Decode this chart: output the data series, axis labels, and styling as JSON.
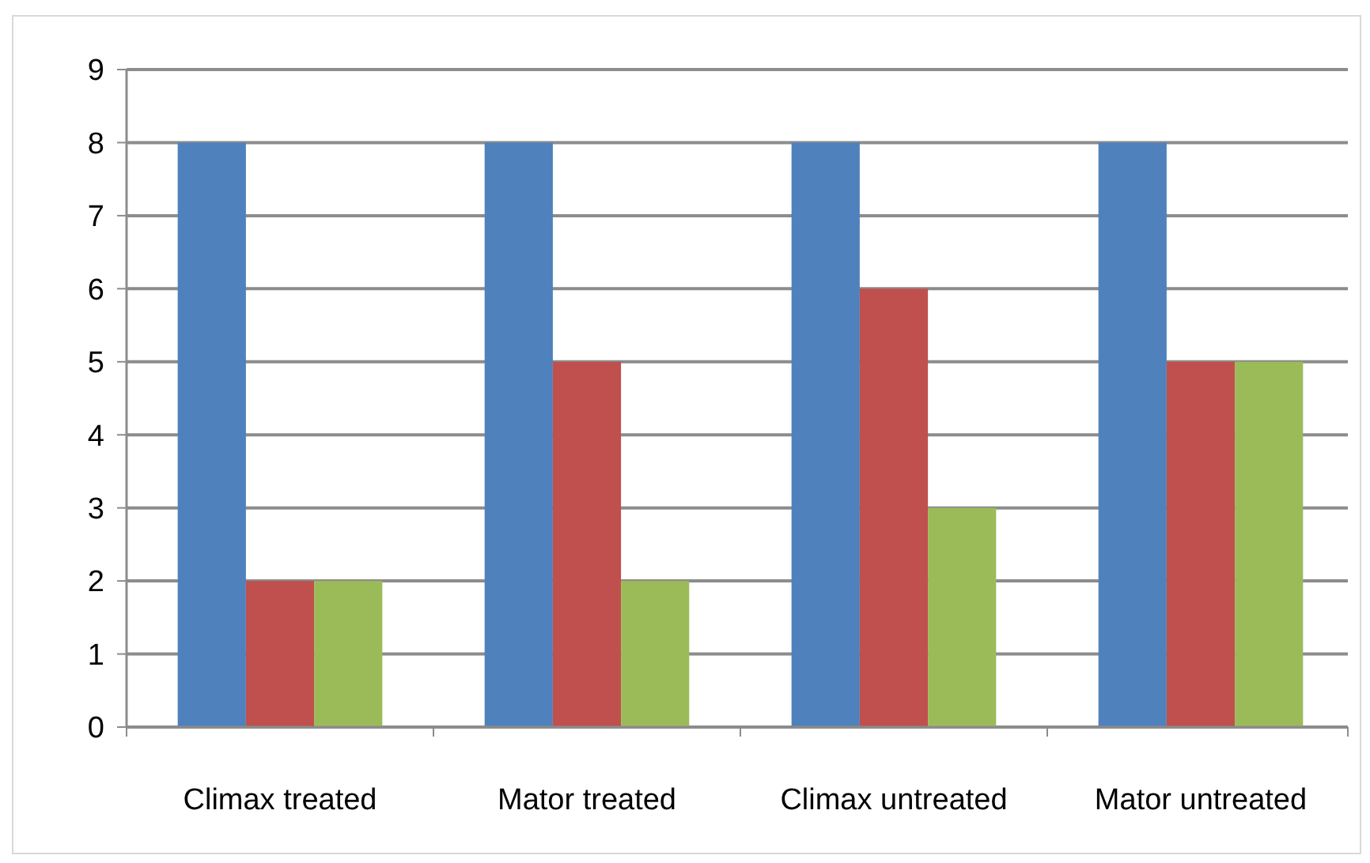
{
  "chart_data": {
    "type": "bar",
    "categories": [
      "Climax treated",
      "Mator treated",
      "Climax untreated",
      "Mator untreated"
    ],
    "series": [
      {
        "color": "#4f81bd",
        "values": [
          8,
          8,
          8,
          8
        ]
      },
      {
        "color": "#c0504d",
        "values": [
          2,
          5,
          6,
          5
        ]
      },
      {
        "color": "#9bbb59",
        "values": [
          2,
          2,
          3,
          5
        ]
      }
    ],
    "ylim": [
      0,
      9
    ],
    "yticks": [
      0,
      1,
      2,
      3,
      4,
      5,
      6,
      7,
      8,
      9
    ],
    "grid": "y"
  }
}
